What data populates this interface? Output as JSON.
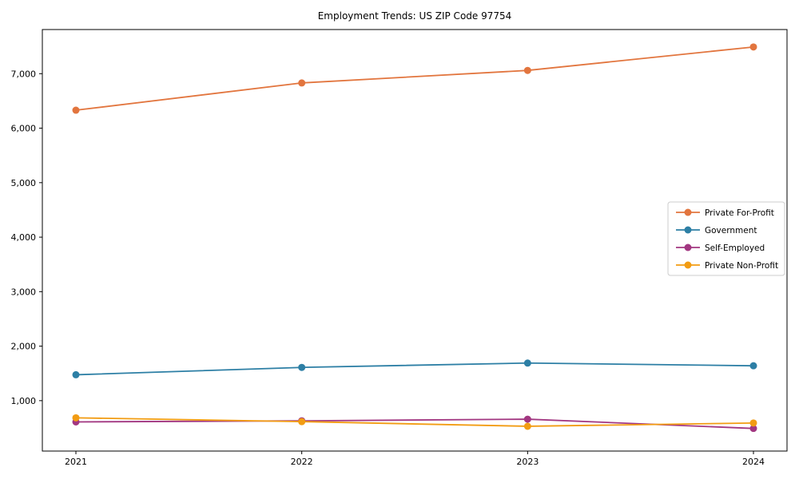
{
  "title": "Employment Trends: US ZIP Code 97754",
  "chart_data": {
    "type": "line",
    "title": "Employment Trends: US ZIP Code 97754",
    "x": [
      2021,
      2022,
      2023,
      2024
    ],
    "series": [
      {
        "name": "Private For-Profit",
        "color": "#e2753e",
        "values": [
          6330,
          6830,
          7060,
          7490
        ]
      },
      {
        "name": "Government",
        "color": "#2d7fa5",
        "values": [
          1475,
          1610,
          1690,
          1640
        ]
      },
      {
        "name": "Self-Employed",
        "color": "#a23781",
        "values": [
          610,
          630,
          660,
          490
        ]
      },
      {
        "name": "Private Non-Profit",
        "color": "#f29c13",
        "values": [
          685,
          615,
          530,
          590
        ]
      }
    ],
    "xlabel": "",
    "ylabel": "",
    "xticks": [
      "2021",
      "2022",
      "2023",
      "2024"
    ],
    "yticks": [
      1000,
      2000,
      3000,
      4000,
      5000,
      6000,
      7000
    ],
    "ytick_labels": [
      "1,000",
      "2,000",
      "3,000",
      "4,000",
      "5,000",
      "6,000",
      "7,000"
    ],
    "ylim": [
      75,
      7810
    ],
    "grid": false,
    "legend_position": "center right",
    "legend_entries": [
      "Private For-Profit",
      "Government",
      "Self-Employed",
      "Private Non-Profit"
    ]
  }
}
